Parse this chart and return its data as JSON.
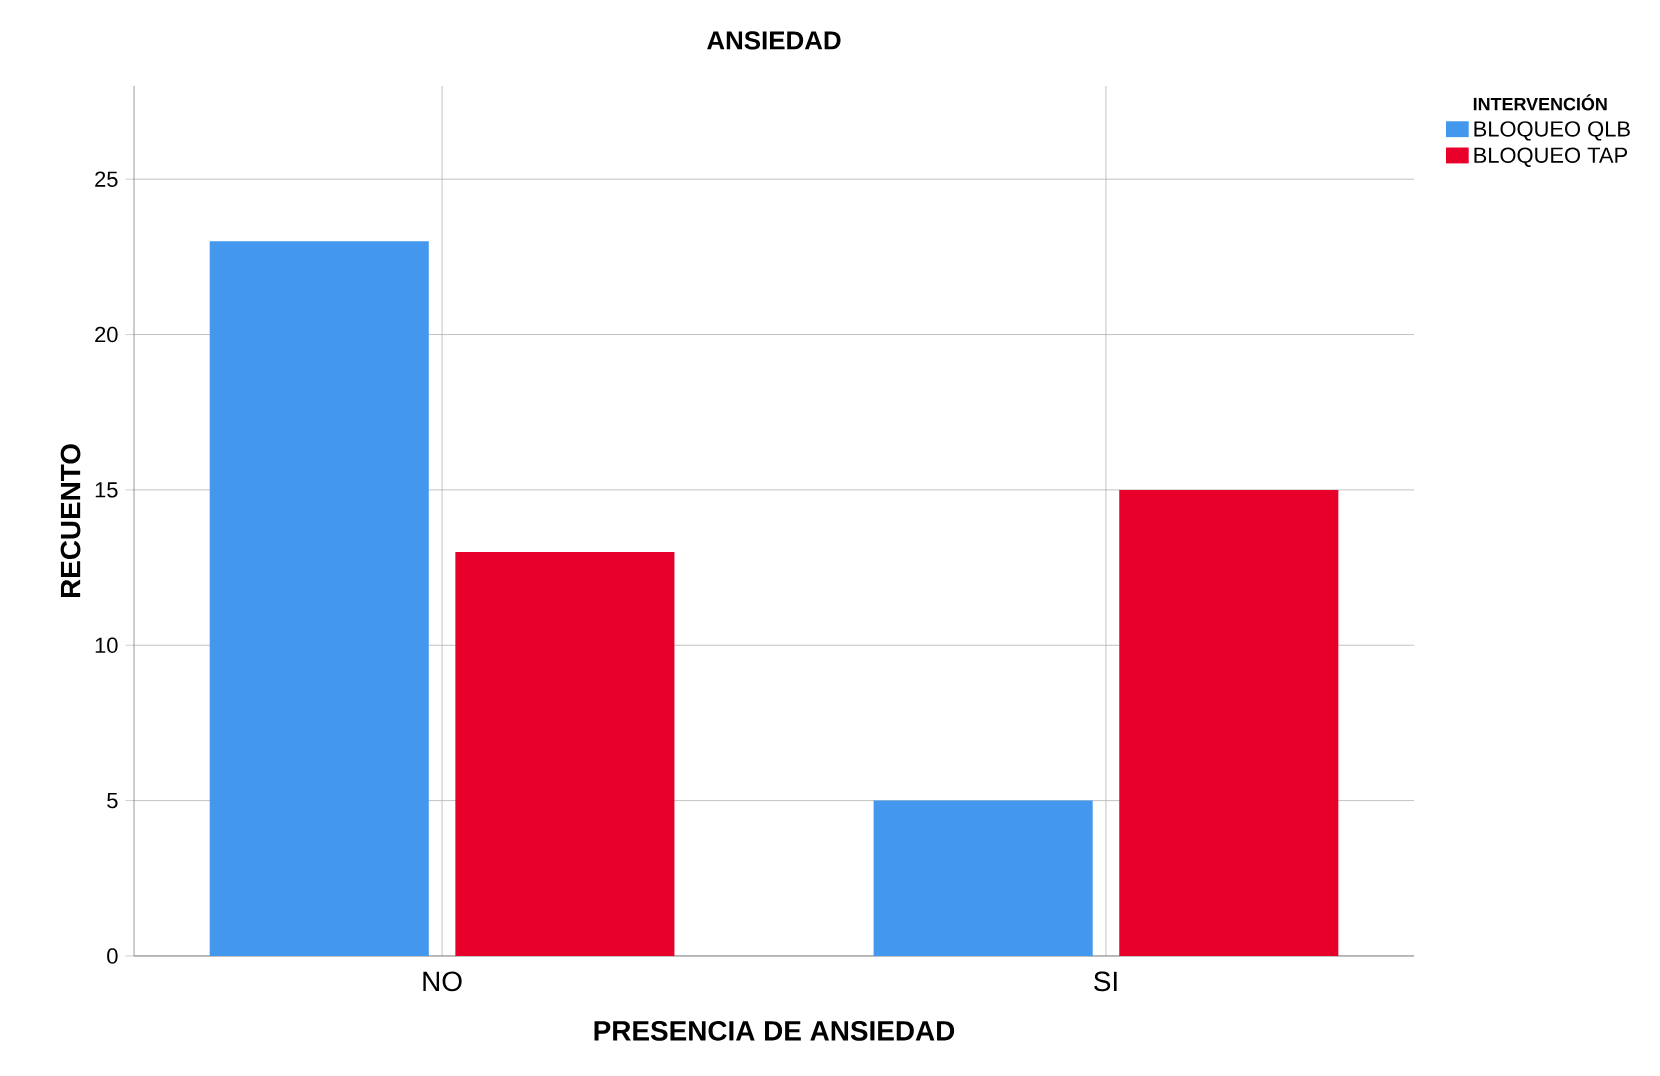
{
  "chart_data": {
    "type": "bar",
    "title": "ANSIEDAD",
    "xlabel": "PRESENCIA DE ANSIEDAD",
    "ylabel": "RECUENTO",
    "legend_title": "INTERVENCIÓN",
    "categories": [
      "NO",
      "SI"
    ],
    "series": [
      {
        "name": "BLOQUEO QLB",
        "color": "#4397ec",
        "values": [
          23,
          5
        ]
      },
      {
        "name": "BLOQUEO TAP",
        "color": "#e8002a",
        "values": [
          13,
          15
        ]
      }
    ],
    "ylim": [
      0,
      28
    ],
    "yticks": [
      0,
      5,
      10,
      15,
      20,
      25
    ],
    "grid": true,
    "legend": "top right"
  }
}
